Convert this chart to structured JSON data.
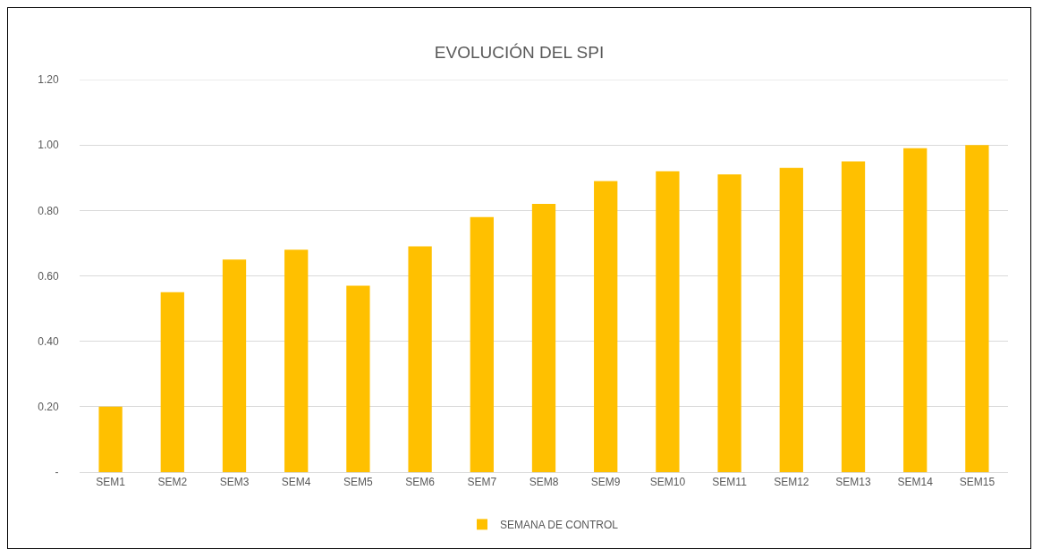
{
  "chart_data": {
    "type": "bar",
    "title": "EVOLUCIÓN DEL SPI",
    "categories": [
      "SEM1",
      "SEM2",
      "SEM3",
      "SEM4",
      "SEM5",
      "SEM6",
      "SEM7",
      "SEM8",
      "SEM9",
      "SEM10",
      "SEM11",
      "SEM12",
      "SEM13",
      "SEM14",
      "SEM15"
    ],
    "series": [
      {
        "name": "SEMANA DE CONTROL",
        "color": "#ffc000",
        "values": [
          0.2,
          0.55,
          0.65,
          0.68,
          0.57,
          0.69,
          0.78,
          0.82,
          0.89,
          0.92,
          0.91,
          0.93,
          0.95,
          0.99,
          1.0
        ]
      }
    ],
    "ylim": [
      0,
      1.2
    ],
    "yticks": [
      {
        "value": 0,
        "label": "-"
      },
      {
        "value": 0.2,
        "label": "0.20"
      },
      {
        "value": 0.4,
        "label": "0.40"
      },
      {
        "value": 0.6,
        "label": "0.60"
      },
      {
        "value": 0.8,
        "label": "0.80"
      },
      {
        "value": 1.0,
        "label": "1.00"
      },
      {
        "value": 1.2,
        "label": "1.20"
      }
    ],
    "grid": "y",
    "legend": "bottom"
  }
}
